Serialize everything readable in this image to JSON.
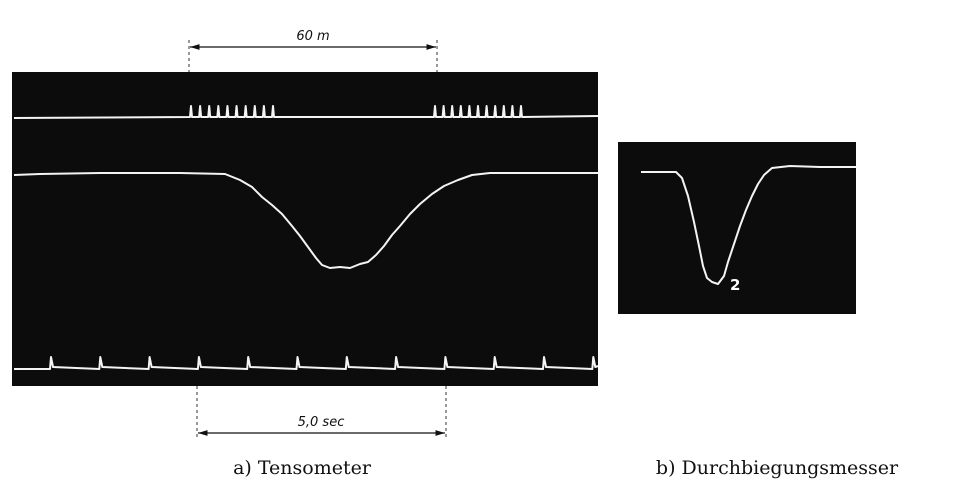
{
  "figure": {
    "panel_a": {
      "distance_label": "60 m",
      "time_label": "5,0 sec",
      "caption": "a) Tensometer"
    },
    "panel_b": {
      "trace_label": "2",
      "caption": "b) Durchbiegungsmesser"
    }
  }
}
